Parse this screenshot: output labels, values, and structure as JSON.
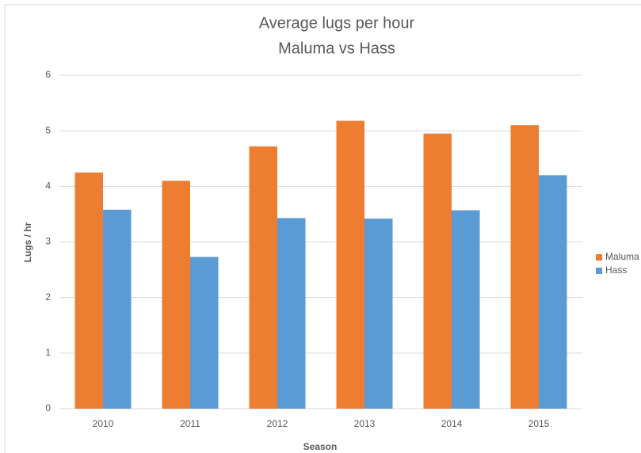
{
  "chart_data": {
    "type": "bar",
    "title": "Average lugs per hour",
    "subtitle": "Maluma vs Hass",
    "x_label": "Season",
    "y_label": "Lugs / hr",
    "categories": [
      "2010",
      "2011",
      "2012",
      "2013",
      "2014",
      "2015"
    ],
    "series": [
      {
        "name": "Maluma",
        "color": "#ed7d31",
        "values": [
          4.25,
          4.1,
          4.72,
          5.18,
          4.95,
          5.1
        ]
      },
      {
        "name": "Hass",
        "color": "#5b9bd5",
        "values": [
          3.58,
          2.73,
          3.43,
          3.42,
          3.57,
          4.2
        ]
      }
    ],
    "ylim": [
      0,
      6
    ],
    "yticks": [
      0,
      1,
      2,
      3,
      4,
      5,
      6
    ],
    "grid": true,
    "legend": "right"
  }
}
